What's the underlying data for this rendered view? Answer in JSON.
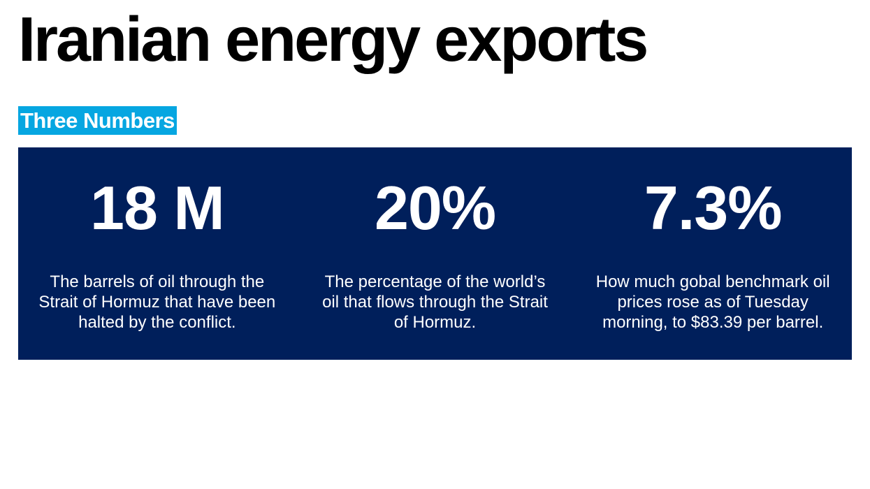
{
  "title": "Iranian energy exports",
  "section_label": "Three Numbers",
  "colors": {
    "label_bg": "#06a6e1",
    "panel_bg": "#001f5b"
  },
  "stats": [
    {
      "value": "18 M",
      "description": "The barrels of oil through the Strait of Hormuz that have been halted by the conflict."
    },
    {
      "value": "20%",
      "description": "The percentage of the world’s oil that flows through the Strait of Hormuz."
    },
    {
      "value": "7.3%",
      "description": "How much gobal benchmark oil prices rose as of Tuesday morning, to $83.39 per barrel."
    }
  ]
}
